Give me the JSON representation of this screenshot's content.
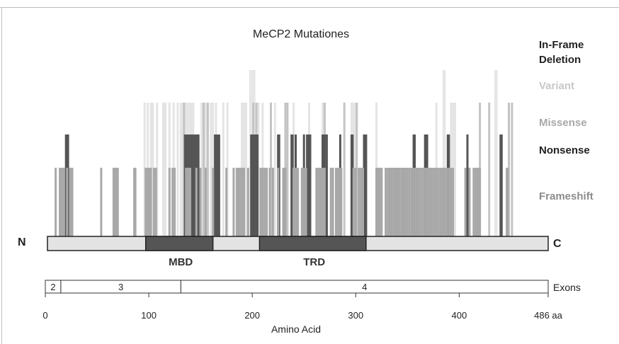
{
  "chart_data": {
    "type": "bar",
    "title": "MeCP2 Mutationes",
    "xlabel": "Amino Acid",
    "xlim": [
      0,
      486
    ],
    "x_ticks": [
      {
        "value": 0,
        "label": "0"
      },
      {
        "value": 100,
        "label": "100"
      },
      {
        "value": 200,
        "label": "200"
      },
      {
        "value": 300,
        "label": "300"
      },
      {
        "value": 400,
        "label": "400"
      },
      {
        "value": 486,
        "label": "486 aa"
      }
    ],
    "legend_placement": "right",
    "series": [
      {
        "name": "In-Frame Deletion",
        "color": "#e6e6e6",
        "level": 5,
        "x": [
          198,
          200,
          202,
          385,
          386,
          435,
          436
        ]
      },
      {
        "name": "Variant",
        "color": "#e4e4e4",
        "level": 4,
        "x": [
          96,
          99,
          102,
          104,
          108,
          114,
          116,
          120,
          124,
          128,
          131,
          133,
          135,
          137,
          139,
          141,
          143,
          151,
          153,
          155,
          157,
          160,
          162,
          165,
          172,
          176,
          190,
          192,
          194,
          204,
          206,
          210,
          222,
          240,
          255,
          268,
          270,
          296,
          298,
          300,
          320,
          378,
          392,
          394,
          396
        ]
      },
      {
        "name": "Missense",
        "color": "#c4c4c4",
        "level": 3,
        "x": [
          134,
          153,
          157,
          201,
          204,
          218,
          232,
          234,
          270,
          289,
          301,
          420,
          429,
          448,
          451
        ]
      },
      {
        "name": "Nonsense",
        "color": "#555555",
        "level": 2,
        "x": [
          20,
          21,
          22,
          135,
          136,
          137,
          138,
          139,
          140,
          141,
          142,
          143,
          144,
          145,
          146,
          147,
          148,
          164,
          165,
          166,
          168,
          199,
          200,
          201,
          202,
          204,
          205,
          225,
          226,
          238,
          239,
          242,
          250,
          253,
          254,
          255,
          256,
          268,
          269,
          270,
          272,
          285,
          296,
          297,
          308,
          309,
          309,
          310,
          356,
          357,
          367,
          368,
          369,
          389,
          390,
          408,
          440,
          441
        ]
      },
      {
        "name": "Frameshift",
        "color": "#a8a8a8",
        "level": 1,
        "x": [
          10,
          14,
          16,
          18,
          21,
          24,
          26,
          54,
          66,
          67,
          68,
          69,
          70,
          86,
          87,
          97,
          98,
          100,
          102,
          105,
          107,
          120,
          123,
          125,
          136,
          138,
          140,
          146,
          150,
          155,
          162,
          175,
          182,
          185,
          186,
          187,
          188,
          190,
          192,
          196,
          208,
          210,
          212,
          214,
          217,
          220,
          225,
          230,
          232,
          240,
          242,
          244,
          248,
          249,
          250,
          252,
          262,
          263,
          264,
          265,
          266,
          267,
          268,
          270,
          276,
          278,
          281,
          282,
          284,
          286,
          298,
          300,
          303,
          305,
          307,
          320,
          321,
          323,
          325,
          329,
          331,
          333,
          335,
          337,
          338,
          339,
          340,
          341,
          342,
          344,
          346,
          348,
          350,
          352,
          354,
          356,
          358,
          360,
          362,
          364,
          366,
          368,
          370,
          372,
          374,
          376,
          378,
          380,
          382,
          384,
          386,
          388,
          390,
          392,
          394,
          406,
          410,
          414,
          416,
          417,
          418,
          420,
          446,
          447
        ]
      }
    ],
    "protein": {
      "start_label": "N",
      "end_label": "C",
      "length": 486,
      "domains": [
        {
          "name": "MBD",
          "start": 97,
          "end": 162
        },
        {
          "name": "TRD",
          "start": 207,
          "end": 310
        }
      ],
      "colors": {
        "backbone": "#e3e3e3",
        "domain": "#555555",
        "outline": "#222222"
      }
    },
    "exons": {
      "label": "Exons",
      "segments": [
        {
          "name": "2",
          "start": 0,
          "end": 15
        },
        {
          "name": "3",
          "start": 15,
          "end": 131
        },
        {
          "name": "4",
          "start": 131,
          "end": 486
        }
      ]
    }
  }
}
